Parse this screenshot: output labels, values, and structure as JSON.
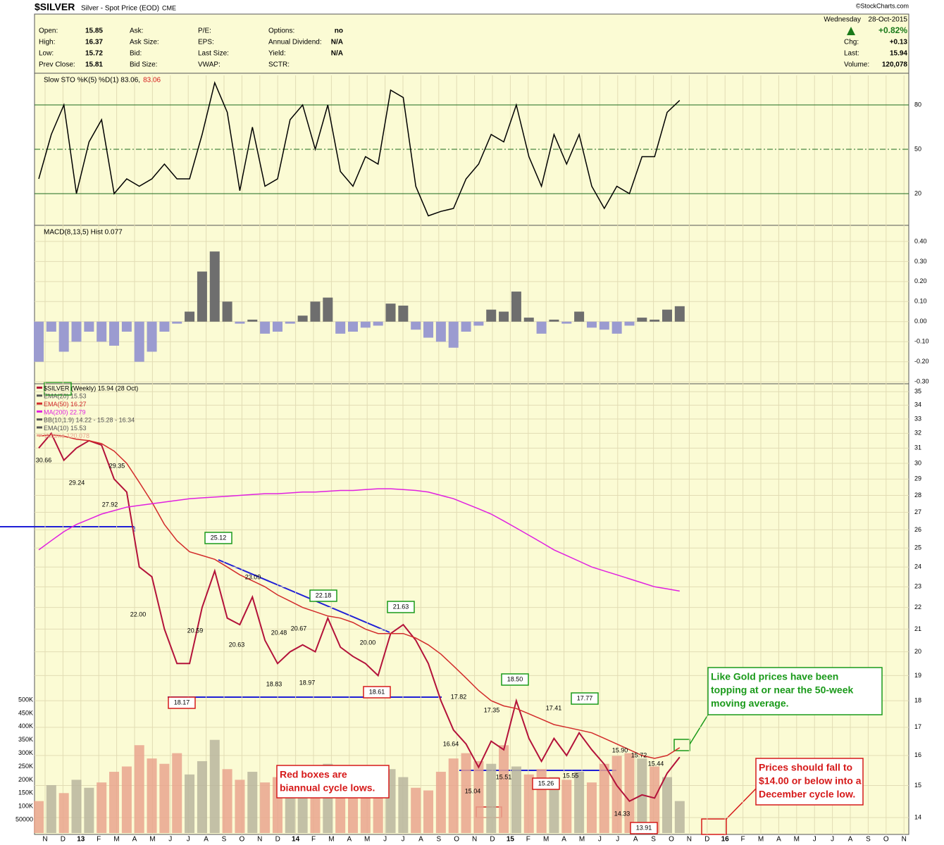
{
  "header": {
    "symbol": "$SILVER",
    "name": "Silver - Spot Price (EOD)",
    "exchange": "CME",
    "source": "©StockCharts.com",
    "columns": [
      [
        {
          "label": "Open:",
          "value": 15.85
        },
        {
          "label": "High:",
          "value": 16.37
        },
        {
          "label": "Low:",
          "value": 15.72
        },
        {
          "label": "Prev Close:",
          "value": 15.81
        }
      ],
      [
        {
          "label": "Ask:"
        },
        {
          "label": "Ask Size:"
        },
        {
          "label": "Bid:"
        },
        {
          "label": "Bid Size:"
        }
      ],
      [
        {
          "label": "P/E:"
        },
        {
          "label": "EPS:"
        },
        {
          "label": "Last Size:"
        },
        {
          "label": "VWAP:"
        }
      ],
      [
        {
          "label": "Options:",
          "value": "no"
        },
        {
          "label": "Annual Dividend:",
          "value": "N/A"
        },
        {
          "label": "Yield:",
          "value": "N/A"
        },
        {
          "label": "SCTR:"
        }
      ]
    ],
    "day": "Wednesday",
    "date": "28-Oct-2015",
    "change_pct": "+0.82%",
    "right_rows": [
      {
        "label": "Chg:",
        "value": "+0.13"
      },
      {
        "label": "Last:",
        "value": 15.94
      },
      {
        "label": "Volume:",
        "value": "120,078"
      }
    ]
  },
  "chart_data": [
    {
      "type": "line",
      "title": "Slow STO %K(5) %D(1) 83.06,",
      "title_value": "83.06",
      "ylim": [
        0,
        100
      ],
      "yticks": [
        20,
        50,
        80
      ],
      "grid_color": "#1e6b1e",
      "series": [
        {
          "name": "%K",
          "color": "#000000",
          "values": [
            30,
            60,
            80,
            20,
            55,
            70,
            20,
            30,
            25,
            30,
            40,
            30,
            30,
            60,
            95,
            75,
            22,
            65,
            25,
            30,
            70,
            80,
            50,
            80,
            35,
            25,
            45,
            40,
            90,
            85,
            25,
            5,
            8,
            10,
            30,
            40,
            60,
            55,
            80,
            45,
            25,
            60,
            40,
            60,
            25,
            10,
            25,
            20,
            45,
            45,
            75,
            83.06
          ]
        }
      ]
    },
    {
      "type": "bar",
      "title": "MACD(8,13,5) Hist 0.077",
      "ylim": [
        -0.31,
        0.47
      ],
      "yticks": [
        {
          "value": 0.4,
          "label": "0.40"
        },
        {
          "value": 0.3,
          "label": "0.30"
        },
        {
          "value": 0.2,
          "label": "0.20"
        },
        {
          "value": 0.1,
          "label": "0.10"
        },
        {
          "value": 0,
          "label": "0.00"
        },
        {
          "value": -0.1,
          "label": "-0.10"
        },
        {
          "value": -0.2,
          "label": "-0.20"
        },
        {
          "value": -0.3,
          "label": "-0.30"
        }
      ],
      "color": "#6e6e6e",
      "negative_color": "#9b9bd0",
      "values": [
        -0.2,
        -0.05,
        -0.15,
        -0.1,
        -0.05,
        -0.1,
        -0.12,
        -0.05,
        -0.2,
        -0.15,
        -0.05,
        -0.01,
        0.05,
        0.25,
        0.35,
        0.1,
        -0.01,
        0.01,
        -0.06,
        -0.05,
        -0.01,
        0.03,
        0.1,
        0.12,
        -0.06,
        -0.05,
        -0.03,
        -0.02,
        0.09,
        0.08,
        -0.04,
        -0.08,
        -0.1,
        -0.13,
        -0.05,
        -0.02,
        0.06,
        0.05,
        0.15,
        0.02,
        -0.06,
        0.01,
        -0.01,
        0.05,
        -0.03,
        -0.04,
        -0.06,
        -0.02,
        0.02,
        0.01,
        0.06,
        0.077
      ]
    },
    {
      "type": "line",
      "log": true,
      "ylim": [
        13.5,
        35.6
      ],
      "yticks": [
        14,
        15,
        16,
        17,
        18,
        19,
        20,
        21,
        22,
        23,
        24,
        25,
        26,
        27,
        28,
        29,
        30,
        31,
        32,
        33,
        34,
        35
      ],
      "y2lim": [
        0,
        500000
      ],
      "y2ticks": [
        50000,
        {
          "value": 100000,
          "label": "100K"
        },
        {
          "value": 150000,
          "label": "150K"
        },
        {
          "value": 200000,
          "label": "200K"
        },
        {
          "value": 250000,
          "label": "250K"
        },
        {
          "value": 300000,
          "label": "300K"
        },
        {
          "value": 350000,
          "label": "350K"
        },
        {
          "value": 400000,
          "label": "400K"
        },
        {
          "value": 450000,
          "label": "450K"
        },
        {
          "value": 500000,
          "label": "500K"
        }
      ],
      "x_labels": [
        "N",
        "D",
        "13",
        "F",
        "M",
        "A",
        "M",
        "J",
        "J",
        "A",
        "S",
        "O",
        "N",
        "D",
        "14",
        "F",
        "M",
        "A",
        "M",
        "J",
        "J",
        "A",
        "S",
        "O",
        "N",
        "D",
        "15",
        "F",
        "M",
        "A",
        "M",
        "J",
        "J",
        "A",
        "S",
        "O",
        "N",
        "D",
        "16",
        "F",
        "M",
        "A",
        "M",
        "J",
        "J",
        "A",
        "S",
        "O",
        "N"
      ],
      "series": [
        {
          "name": "$SILVER (Weekly) 15.94 (28 Oct)",
          "color": "#b3123a",
          "values": [
            31.0,
            32.0,
            30.2,
            31.0,
            31.5,
            31.2,
            29.0,
            28.2,
            24.0,
            23.5,
            21.0,
            19.5,
            19.5,
            22.0,
            23.8,
            21.5,
            21.2,
            22.5,
            20.5,
            19.5,
            20.0,
            20.3,
            20.0,
            21.5,
            20.2,
            19.8,
            19.5,
            19.0,
            20.8,
            21.2,
            20.5,
            19.5,
            18.0,
            16.9,
            16.4,
            15.6,
            16.5,
            16.2,
            18.0,
            16.6,
            15.8,
            16.6,
            16.0,
            16.8,
            16.2,
            15.7,
            15.0,
            14.5,
            14.7,
            14.6,
            15.4,
            15.94
          ]
        },
        {
          "name": "EMA(50) 16.27",
          "color": "#d22b2b",
          "values": [
            31.8,
            31.9,
            31.8,
            31.6,
            31.5,
            31.3,
            30.8,
            30.0,
            28.8,
            27.6,
            26.3,
            25.4,
            24.8,
            24.6,
            24.4,
            24.0,
            23.6,
            23.3,
            23.0,
            22.6,
            22.3,
            22.0,
            21.8,
            21.6,
            21.5,
            21.3,
            21.0,
            20.8,
            20.8,
            20.8,
            20.6,
            20.3,
            19.9,
            19.4,
            18.9,
            18.4,
            18.0,
            17.8,
            17.7,
            17.5,
            17.3,
            17.1,
            17.0,
            16.9,
            16.8,
            16.6,
            16.4,
            16.2,
            16.0,
            15.9,
            16.0,
            16.27
          ]
        },
        {
          "name": "MA(200) 22.79",
          "color": "#e020e0",
          "values": [
            24.9,
            25.4,
            25.9,
            26.3,
            26.6,
            26.9,
            27.1,
            27.3,
            27.4,
            27.5,
            27.6,
            27.7,
            27.8,
            27.85,
            27.9,
            27.95,
            28.0,
            28.05,
            28.1,
            28.1,
            28.15,
            28.2,
            28.2,
            28.25,
            28.3,
            28.3,
            28.35,
            28.4,
            28.4,
            28.35,
            28.3,
            28.2,
            28.0,
            27.8,
            27.5,
            27.2,
            26.9,
            26.5,
            26.1,
            25.7,
            25.3,
            24.9,
            24.6,
            24.3,
            24.0,
            23.8,
            23.6,
            23.4,
            23.2,
            23.0,
            22.9,
            22.79
          ]
        },
        {
          "name": "Volume 120,078",
          "axis": "y2",
          "color": "#e9a58e",
          "values": [
            120000,
            180000,
            150000,
            200000,
            170000,
            190000,
            230000,
            250000,
            330000,
            280000,
            260000,
            300000,
            220000,
            270000,
            350000,
            240000,
            200000,
            230000,
            190000,
            210000,
            180000,
            220000,
            240000,
            260000,
            200000,
            170000,
            190000,
            180000,
            240000,
            210000,
            170000,
            160000,
            230000,
            280000,
            300000,
            270000,
            260000,
            330000,
            250000,
            220000,
            240000,
            210000,
            200000,
            230000,
            190000,
            260000,
            290000,
            300000,
            280000,
            250000,
            210000,
            120078
          ]
        }
      ],
      "other_indicators": [
        "EMA(20) 15.53",
        "BB(10,1.9) 14.22 - 15.28 - 16.34",
        "EMA(10) 15.53"
      ],
      "annotations": [
        {
          "value": 30.66
        },
        {
          "value": 29.24
        },
        {
          "value": 29.35
        },
        {
          "value": 27.92
        },
        {
          "value": 22,
          "label": "22.00"
        },
        {
          "value": 25.12,
          "box": "green"
        },
        {
          "value": 20.59
        },
        {
          "value": 20.63
        },
        {
          "value": 23.09
        },
        {
          "value": 20.48
        },
        {
          "value": 20.67
        },
        {
          "value": 18.83
        },
        {
          "value": 18.97
        },
        {
          "value": 22.18,
          "box": "green"
        },
        {
          "value": 20,
          "label": "20.00"
        },
        {
          "value": 18.61,
          "box": "red"
        },
        {
          "value": 21.63,
          "box": "green"
        },
        {
          "value": 18.17,
          "box": "red"
        },
        {
          "value": 17.82
        },
        {
          "value": 16.64
        },
        {
          "value": 17.35
        },
        {
          "value": 15.04
        },
        {
          "value": 15.51
        },
        {
          "value": 18.5,
          "label": "18.50",
          "box": "green"
        },
        {
          "value": 17.41
        },
        {
          "value": 15.26,
          "box": "red"
        },
        {
          "value": 15.55
        },
        {
          "value": 17.77,
          "box": "green"
        },
        {
          "value": 15.9,
          "label": "15.90"
        },
        {
          "value": 15.72
        },
        {
          "value": 15.44
        },
        {
          "value": 14.33
        },
        {
          "value": 13.91,
          "box": "red"
        }
      ],
      "callouts": [
        {
          "lines": [
            "Like Gold prices have been",
            "topping at or near the 50-week",
            "moving average."
          ],
          "color": "#1a9a1a"
        },
        {
          "lines": [
            "Prices should fall to",
            "$14.00 or below into a",
            "December cycle low."
          ],
          "color": "#d61a1a"
        },
        {
          "lines": [
            "Red boxes are",
            "biannual cycle lows."
          ],
          "color": "#d61a1a"
        }
      ]
    }
  ]
}
